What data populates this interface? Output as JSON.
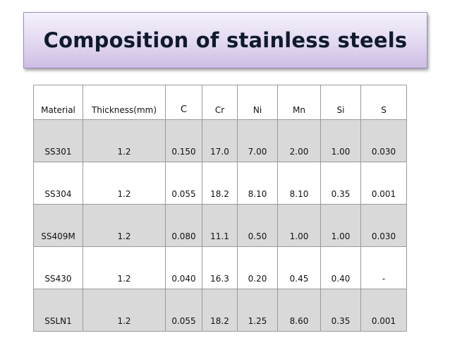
{
  "title": "Composition of stainless steels",
  "table": {
    "headers": [
      "Material",
      "Thickness(mm)",
      "C",
      "Cr",
      "Ni",
      "Mn",
      "Si",
      "S"
    ],
    "rows": [
      [
        "SS301",
        "1.2",
        "0.150",
        "17.0",
        "7.00",
        "2.00",
        "1.00",
        "0.030"
      ],
      [
        "SS304",
        "1.2",
        "0.055",
        "18.2",
        "8.10",
        "8.10",
        "0.35",
        "0.001"
      ],
      [
        "SS409M",
        "1.2",
        "0.080",
        "11.1",
        "0.50",
        "1.00",
        "1.00",
        "0.030"
      ],
      [
        "SS430",
        "1.2",
        "0.040",
        "16.3",
        "0.20",
        "0.45",
        "0.40",
        "-"
      ],
      [
        "SSLN1",
        "1.2",
        "0.055",
        "18.2",
        "1.25",
        "8.60",
        "0.35",
        "0.001"
      ]
    ]
  },
  "colors": {
    "title_bg": "#e2d8f0",
    "row_shade": "#d9d9d9"
  }
}
